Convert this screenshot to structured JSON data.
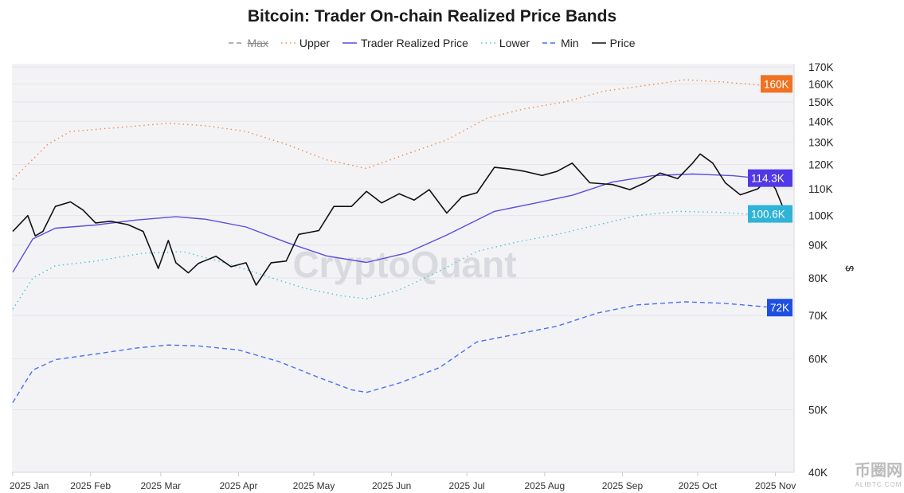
{
  "chart_data": {
    "type": "line",
    "title": "Bitcoin: Trader On-chain Realized Price Bands",
    "ylabel": "$",
    "yscale": "log",
    "ylim": [
      40000,
      170000
    ],
    "xlim": [
      "2025-01-01",
      "2025-11-04"
    ],
    "y_ticks": [
      "40K",
      "50K",
      "60K",
      "70K",
      "80K",
      "90K",
      "100K",
      "110K",
      "120K",
      "130K",
      "140K",
      "150K",
      "160K",
      "170K"
    ],
    "y_tick_values": [
      40000,
      50000,
      60000,
      70000,
      80000,
      90000,
      100000,
      110000,
      120000,
      130000,
      140000,
      150000,
      160000,
      170000
    ],
    "x_ticks": [
      "2025 Jan",
      "2025 Feb",
      "2025 Mar",
      "2025 Apr",
      "2025 May",
      "2025 Jun",
      "2025 Jul",
      "2025 Aug",
      "2025 Sep",
      "2025 Oct",
      "2025 Nov"
    ],
    "x_tick_dates": [
      "2025-01-01",
      "2025-02-01",
      "2025-03-01",
      "2025-04-01",
      "2025-05-01",
      "2025-06-01",
      "2025-07-01",
      "2025-08-01",
      "2025-09-01",
      "2025-10-01",
      "2025-11-01"
    ],
    "grid": true,
    "legend_position": "top",
    "watermark": "CryptoQuant",
    "series": [
      {
        "name": "Max",
        "style": "dashed",
        "color": "#999999",
        "hidden": true,
        "points": []
      },
      {
        "name": "Upper",
        "style": "dotted",
        "color": "#f08a4b",
        "points": [
          [
            "2025-01-01",
            113800
          ],
          [
            "2025-01-15",
            129000
          ],
          [
            "2025-01-24",
            135000
          ],
          [
            "2025-02-13",
            137000
          ],
          [
            "2025-03-04",
            139000
          ],
          [
            "2025-03-19",
            137800
          ],
          [
            "2025-04-04",
            135000
          ],
          [
            "2025-04-20",
            129000
          ],
          [
            "2025-05-06",
            122000
          ],
          [
            "2025-05-22",
            118300
          ],
          [
            "2025-06-07",
            124600
          ],
          [
            "2025-06-23",
            131000
          ],
          [
            "2025-07-09",
            141600
          ],
          [
            "2025-07-24",
            146400
          ],
          [
            "2025-08-09",
            150000
          ],
          [
            "2025-08-25",
            156000
          ],
          [
            "2025-09-10",
            159000
          ],
          [
            "2025-09-26",
            162400
          ],
          [
            "2025-10-12",
            161000
          ],
          [
            "2025-10-28",
            159000
          ],
          [
            "2025-11-04",
            160000
          ]
        ]
      },
      {
        "name": "Trader Realized Price",
        "style": "solid",
        "color": "#5b4de0",
        "points": [
          [
            "2025-01-01",
            81700
          ],
          [
            "2025-01-09",
            92000
          ],
          [
            "2025-01-18",
            95600
          ],
          [
            "2025-02-03",
            96700
          ],
          [
            "2025-02-19",
            98400
          ],
          [
            "2025-03-07",
            99600
          ],
          [
            "2025-03-19",
            98700
          ],
          [
            "2025-04-04",
            96000
          ],
          [
            "2025-04-20",
            90900
          ],
          [
            "2025-05-06",
            86600
          ],
          [
            "2025-05-22",
            84600
          ],
          [
            "2025-06-07",
            87500
          ],
          [
            "2025-06-23",
            93300
          ],
          [
            "2025-07-12",
            101500
          ],
          [
            "2025-07-28",
            104500
          ],
          [
            "2025-08-12",
            107500
          ],
          [
            "2025-08-28",
            112700
          ],
          [
            "2025-09-13",
            115300
          ],
          [
            "2025-09-29",
            116000
          ],
          [
            "2025-10-15",
            115300
          ],
          [
            "2025-10-28",
            114000
          ],
          [
            "2025-11-04",
            114300
          ]
        ]
      },
      {
        "name": "Lower",
        "style": "dotted",
        "color": "#4fc3d6",
        "points": [
          [
            "2025-01-01",
            71600
          ],
          [
            "2025-01-09",
            80000
          ],
          [
            "2025-01-18",
            83600
          ],
          [
            "2025-02-03",
            85000
          ],
          [
            "2025-02-22",
            87400
          ],
          [
            "2025-03-10",
            87900
          ],
          [
            "2025-03-26",
            84600
          ],
          [
            "2025-04-11",
            80800
          ],
          [
            "2025-04-27",
            77200
          ],
          [
            "2025-05-12",
            75100
          ],
          [
            "2025-05-22",
            74300
          ],
          [
            "2025-06-04",
            76700
          ],
          [
            "2025-06-20",
            82000
          ],
          [
            "2025-07-05",
            88000
          ],
          [
            "2025-07-21",
            91000
          ],
          [
            "2025-08-06",
            93500
          ],
          [
            "2025-08-22",
            96700
          ],
          [
            "2025-09-07",
            100000
          ],
          [
            "2025-09-23",
            101500
          ],
          [
            "2025-10-09",
            101200
          ],
          [
            "2025-10-28",
            100100
          ],
          [
            "2025-11-04",
            100600
          ]
        ]
      },
      {
        "name": "Min",
        "style": "dashed",
        "color": "#4a6ff0",
        "points": [
          [
            "2025-01-01",
            51300
          ],
          [
            "2025-01-09",
            57600
          ],
          [
            "2025-01-18",
            59800
          ],
          [
            "2025-02-03",
            61000
          ],
          [
            "2025-02-19",
            62300
          ],
          [
            "2025-03-04",
            63000
          ],
          [
            "2025-03-16",
            62800
          ],
          [
            "2025-04-01",
            61900
          ],
          [
            "2025-04-17",
            59400
          ],
          [
            "2025-05-03",
            56100
          ],
          [
            "2025-05-16",
            53700
          ],
          [
            "2025-05-22",
            53200
          ],
          [
            "2025-06-04",
            55000
          ],
          [
            "2025-06-20",
            58100
          ],
          [
            "2025-07-05",
            63700
          ],
          [
            "2025-07-21",
            65500
          ],
          [
            "2025-08-06",
            67400
          ],
          [
            "2025-08-22",
            70600
          ],
          [
            "2025-09-07",
            72700
          ],
          [
            "2025-09-26",
            73500
          ],
          [
            "2025-10-12",
            73100
          ],
          [
            "2025-10-28",
            72200
          ],
          [
            "2025-11-04",
            72000
          ]
        ]
      },
      {
        "name": "Price",
        "style": "solid",
        "color": "#111111",
        "points": [
          [
            "2025-01-01",
            94500
          ],
          [
            "2025-01-07",
            100000
          ],
          [
            "2025-01-10",
            93000
          ],
          [
            "2025-01-13",
            94500
          ],
          [
            "2025-01-18",
            103300
          ],
          [
            "2025-01-24",
            105000
          ],
          [
            "2025-01-29",
            102000
          ],
          [
            "2025-02-03",
            97400
          ],
          [
            "2025-02-09",
            98000
          ],
          [
            "2025-02-16",
            96800
          ],
          [
            "2025-02-22",
            94500
          ],
          [
            "2025-02-28",
            82800
          ],
          [
            "2025-03-04",
            91500
          ],
          [
            "2025-03-07",
            84500
          ],
          [
            "2025-03-12",
            81500
          ],
          [
            "2025-03-16",
            84300
          ],
          [
            "2025-03-23",
            86500
          ],
          [
            "2025-03-29",
            83300
          ],
          [
            "2025-04-04",
            84500
          ],
          [
            "2025-04-08",
            78000
          ],
          [
            "2025-04-14",
            84500
          ],
          [
            "2025-04-20",
            85000
          ],
          [
            "2025-04-25",
            93500
          ],
          [
            "2025-05-03",
            94800
          ],
          [
            "2025-05-09",
            103300
          ],
          [
            "2025-05-16",
            103300
          ],
          [
            "2025-05-22",
            109000
          ],
          [
            "2025-05-28",
            104600
          ],
          [
            "2025-06-04",
            108100
          ],
          [
            "2025-06-10",
            105700
          ],
          [
            "2025-06-16",
            109700
          ],
          [
            "2025-06-23",
            100900
          ],
          [
            "2025-06-29",
            106900
          ],
          [
            "2025-07-05",
            108500
          ],
          [
            "2025-07-12",
            118800
          ],
          [
            "2025-07-18",
            118100
          ],
          [
            "2025-07-24",
            117100
          ],
          [
            "2025-07-31",
            115400
          ],
          [
            "2025-08-06",
            117100
          ],
          [
            "2025-08-12",
            120600
          ],
          [
            "2025-08-19",
            112400
          ],
          [
            "2025-08-28",
            111700
          ],
          [
            "2025-09-04",
            109700
          ],
          [
            "2025-09-10",
            112400
          ],
          [
            "2025-09-16",
            116400
          ],
          [
            "2025-09-23",
            114100
          ],
          [
            "2025-09-29",
            120600
          ],
          [
            "2025-10-02",
            124600
          ],
          [
            "2025-10-07",
            120600
          ],
          [
            "2025-10-12",
            112400
          ],
          [
            "2025-10-18",
            107700
          ],
          [
            "2025-10-25",
            110000
          ],
          [
            "2025-10-29",
            114100
          ],
          [
            "2025-11-01",
            110000
          ],
          [
            "2025-11-04",
            103000
          ]
        ]
      }
    ],
    "last_value_badges": [
      {
        "label": "160K",
        "color": "#ef7222",
        "value": 160000
      },
      {
        "label": "114.3K",
        "color": "#5138e6",
        "value": 114300
      },
      {
        "label": "100.6K",
        "color": "#2fb3d6",
        "value": 100600
      },
      {
        "label": "72K",
        "color": "#1f4fe0",
        "value": 72000
      }
    ]
  },
  "site_watermark": {
    "name": "币圈网",
    "domain": "ALIBTC.COM"
  }
}
